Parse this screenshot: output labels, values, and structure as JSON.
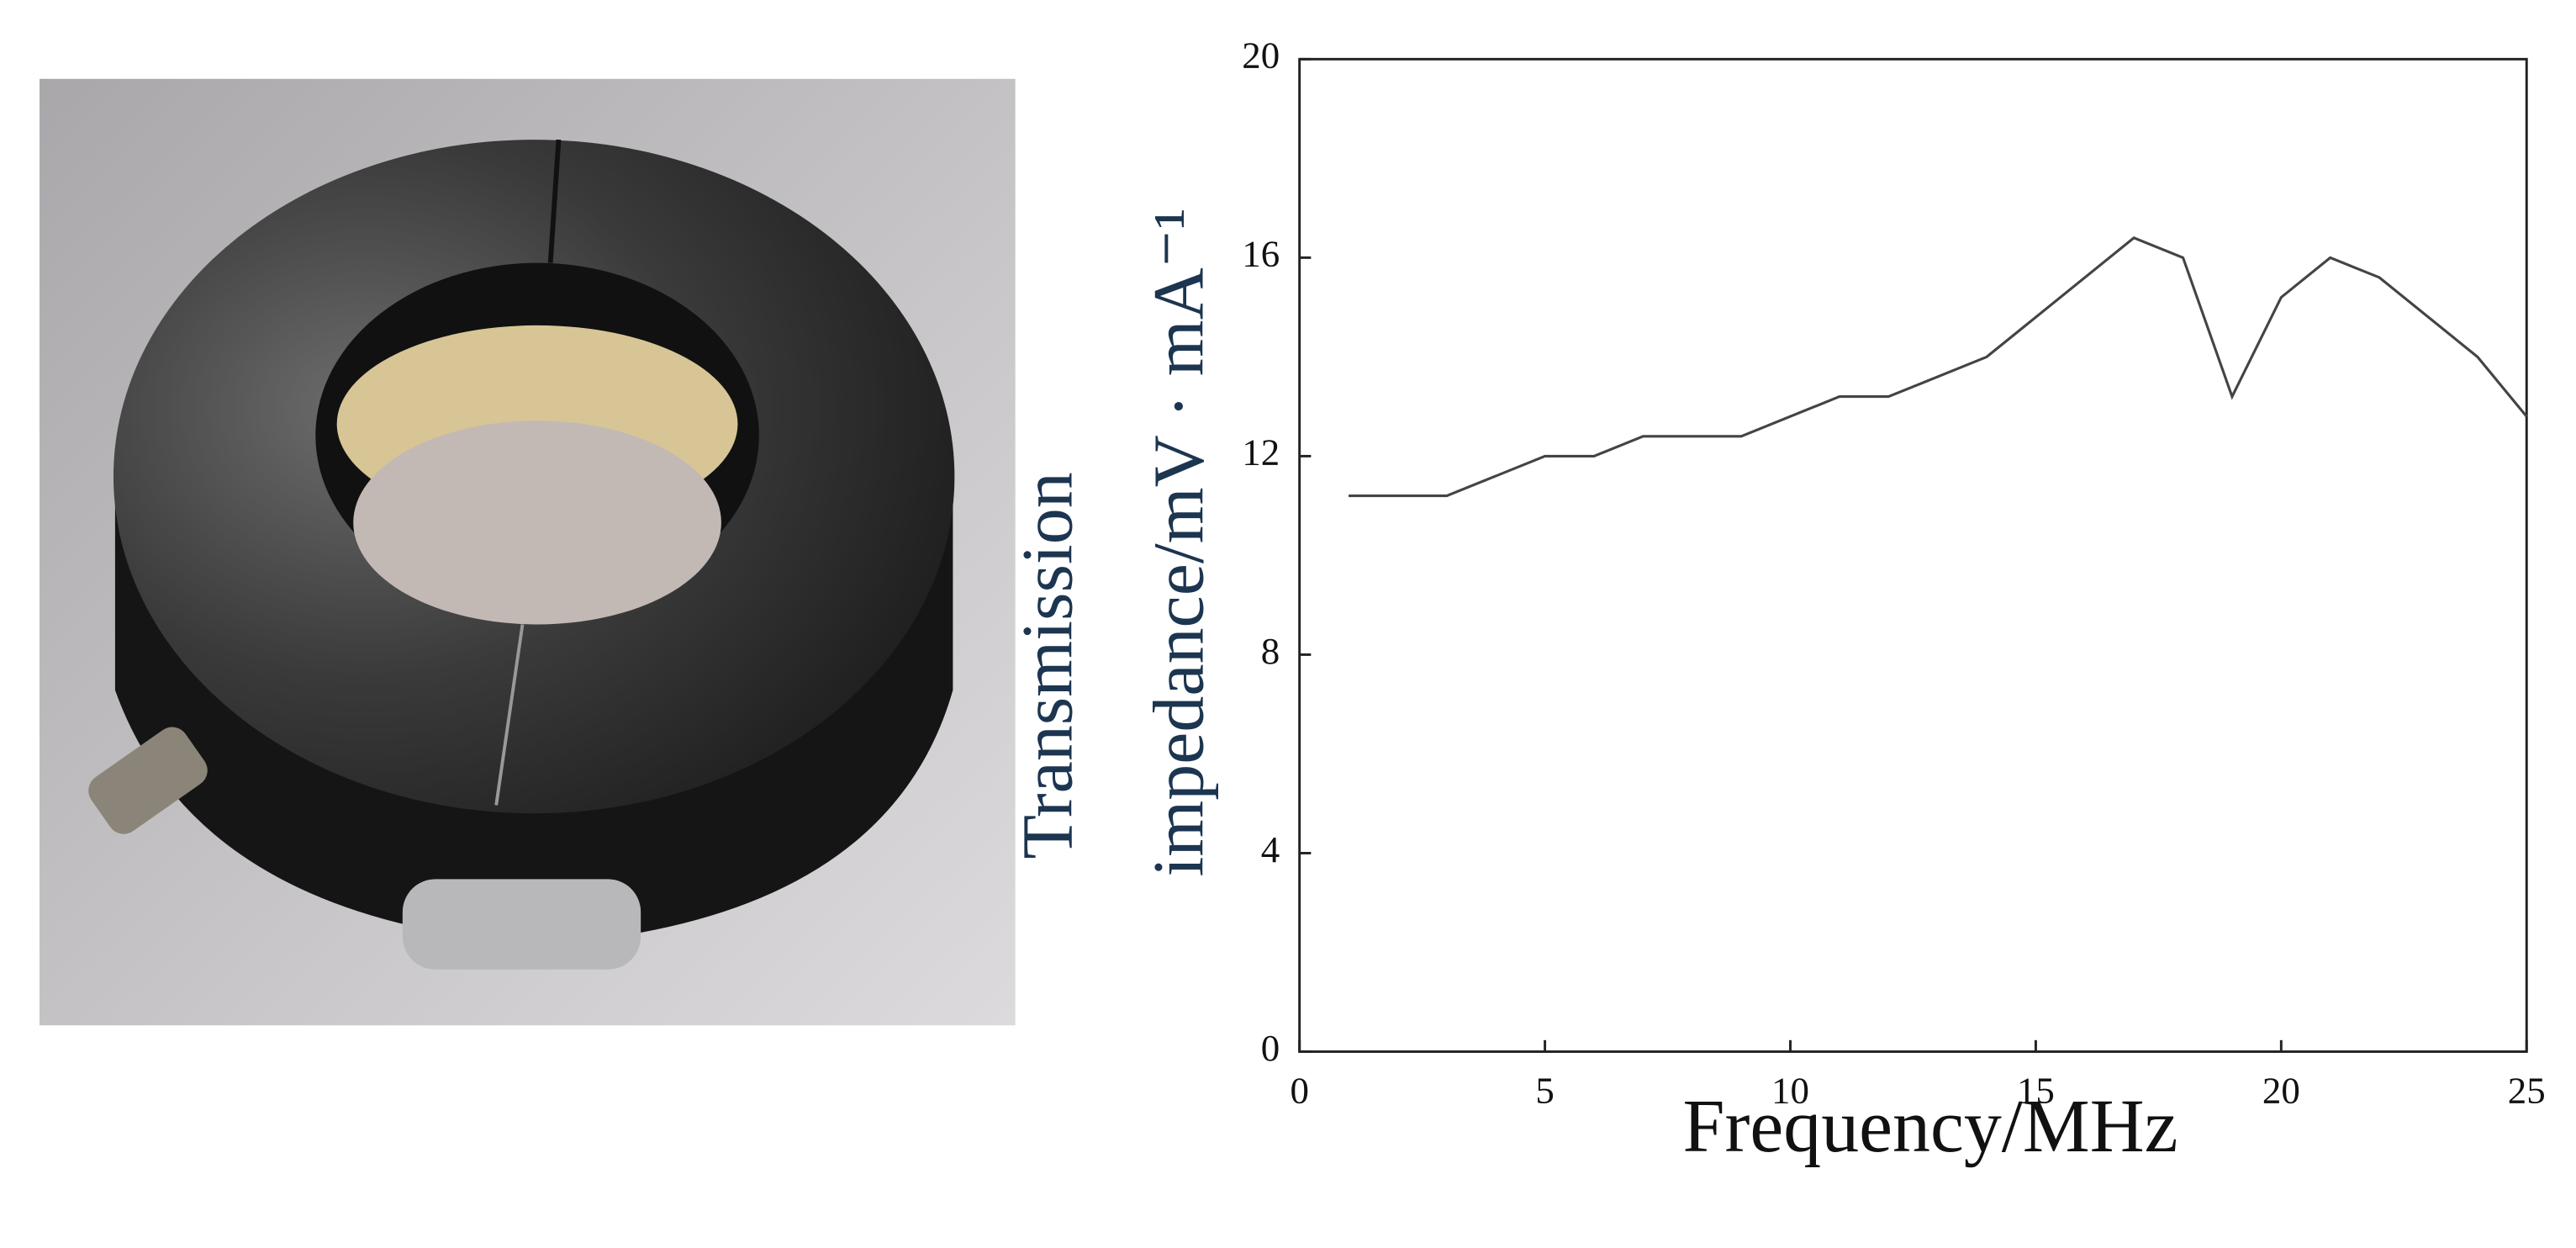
{
  "chart_data": {
    "type": "line",
    "xlabel": "Frequency/MHz",
    "ylabel": [
      "Transmission",
      "impedance/mV · mA⁻¹"
    ],
    "x": [
      1,
      3,
      5,
      6,
      7,
      9,
      11,
      12,
      14,
      17,
      18,
      19,
      20,
      21,
      22,
      24,
      25
    ],
    "values": [
      11.2,
      11.2,
      12.0,
      12.0,
      12.4,
      12.4,
      13.2,
      13.2,
      14.0,
      16.4,
      16.0,
      13.2,
      15.2,
      16.0,
      15.6,
      14.0,
      12.8
    ],
    "color": "#444444",
    "xlim": [
      0,
      25
    ],
    "xticks": [
      0,
      5,
      10,
      15,
      20,
      25
    ],
    "ylim": [
      0,
      20
    ],
    "yticks": [
      0,
      4,
      8,
      12,
      16,
      20
    ]
  }
}
